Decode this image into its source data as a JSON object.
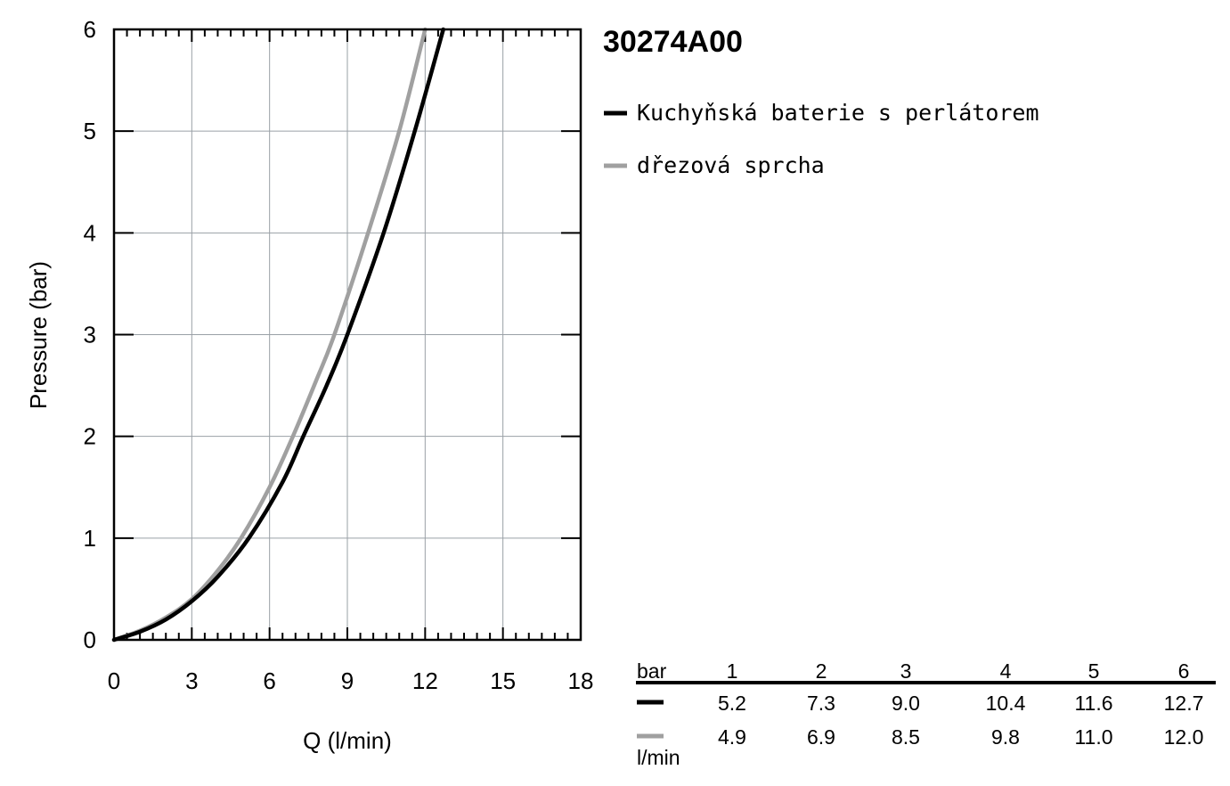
{
  "product_code": "30274A00",
  "legend": [
    {
      "label": "Kuchyňská baterie s perlátorem",
      "color": "#000000"
    },
    {
      "label": "dřezová sprcha",
      "color": "#a0a0a0"
    }
  ],
  "chart_data": {
    "type": "line",
    "xlabel": "Q (l/min)",
    "ylabel": "Pressure (bar)",
    "xlim": [
      0,
      18
    ],
    "ylim": [
      0,
      6
    ],
    "xticks": [
      0,
      3,
      6,
      9,
      12,
      15,
      18
    ],
    "yticks": [
      0,
      1,
      2,
      3,
      4,
      5,
      6
    ],
    "grid": true,
    "legend_position": "right",
    "series": [
      {
        "name": "Kuchyňská baterie s perlátorem",
        "color": "#000000",
        "x": [
          0,
          1,
          2,
          3,
          4,
          5.2,
          6.5,
          7.3,
          8.2,
          9.0,
          10.4,
          11.6,
          12.7
        ],
        "y": [
          0,
          0.08,
          0.2,
          0.38,
          0.62,
          1.0,
          1.55,
          2.0,
          2.5,
          3.0,
          4.0,
          5.0,
          6.0
        ]
      },
      {
        "name": "dřezová sprcha",
        "color": "#a0a0a0",
        "x": [
          0,
          1,
          2,
          3,
          4,
          4.9,
          6.0,
          6.9,
          7.8,
          8.5,
          9.8,
          11.0,
          12.0
        ],
        "y": [
          0,
          0.09,
          0.22,
          0.4,
          0.68,
          1.0,
          1.5,
          2.0,
          2.55,
          3.0,
          4.0,
          5.0,
          6.0
        ]
      }
    ]
  },
  "table": {
    "header_label": "bar",
    "unit_label": "l/min",
    "columns": [
      "1",
      "2",
      "3",
      "4",
      "5",
      "6"
    ],
    "rows": [
      {
        "color": "#000000",
        "values": [
          "5.2",
          "7.3",
          "9.0",
          "10.4",
          "11.6",
          "12.7"
        ]
      },
      {
        "color": "#a0a0a0",
        "values": [
          "4.9",
          "6.9",
          "8.5",
          "9.8",
          "11.0",
          "12.0"
        ]
      }
    ]
  }
}
